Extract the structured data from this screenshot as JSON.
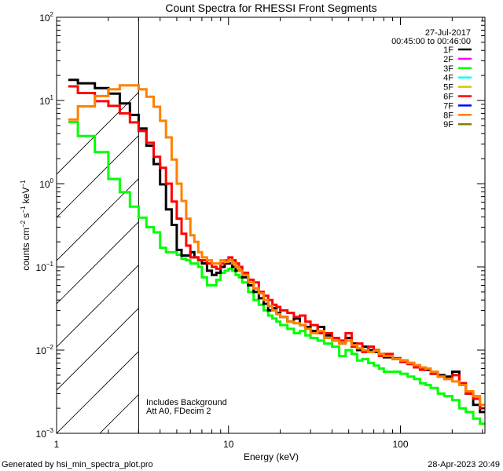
{
  "chart_data": {
    "type": "line",
    "title": "Count Spectra for RHESSI Front Segments",
    "xlabel": "Energy (keV)",
    "ylabel": "counts cm-2 s-1 keV-1",
    "ylabel_parts": {
      "base": "counts cm",
      "e1": "−2",
      "mid1": " s",
      "e2": "−1",
      "mid2": " keV",
      "e3": "−1"
    },
    "xscale": "log",
    "yscale": "log",
    "xlim": [
      1,
      310
    ],
    "ylim": [
      0.001,
      100
    ],
    "x_ticks": [
      {
        "value": 1,
        "label": "1"
      },
      {
        "value": 10,
        "label": "10"
      },
      {
        "value": 100,
        "label": "100"
      }
    ],
    "y_ticks": [
      {
        "value": 100,
        "base": "10",
        "exp": "2"
      },
      {
        "value": 10,
        "base": "10",
        "exp": "1"
      },
      {
        "value": 1,
        "base": "10",
        "exp": "0"
      },
      {
        "value": 0.1,
        "base": "10",
        "exp": "−1"
      },
      {
        "value": 0.01,
        "base": "10",
        "exp": "−2"
      },
      {
        "value": 0.001,
        "base": "10",
        "exp": "−3"
      }
    ],
    "date": "27-Jul-2017",
    "time_range": "00:45:00 to 00:46:00",
    "hatched_below_keV": 3,
    "annotations": [
      "Includes Background",
      "Att A0, FDecim 2"
    ],
    "legend_position": "top-right",
    "legend": [
      {
        "name": "1F",
        "color": "#000000"
      },
      {
        "name": "2F",
        "color": "#ff00ff"
      },
      {
        "name": "3F",
        "color": "#00ff00"
      },
      {
        "name": "4F",
        "color": "#00ffff"
      },
      {
        "name": "5F",
        "color": "#d4c800"
      },
      {
        "name": "6F",
        "color": "#ff0000"
      },
      {
        "name": "7F",
        "color": "#0000ff"
      },
      {
        "name": "8F",
        "color": "#ff8000"
      },
      {
        "name": "9F",
        "color": "#808000"
      }
    ],
    "bin_edges": [
      1.17,
      1.33,
      1.67,
      2,
      2.33,
      2.67,
      3,
      3.33,
      3.67,
      4,
      4.33,
      4.67,
      5,
      5.33,
      5.67,
      6,
      6.33,
      6.67,
      7,
      7.5,
      8,
      8.5,
      9,
      9.5,
      10,
      10.5,
      11,
      11.5,
      12,
      13,
      14,
      15,
      16,
      17,
      18,
      19,
      20,
      22,
      24,
      26,
      28,
      30,
      33,
      36,
      40,
      44,
      48,
      52,
      56,
      60,
      65,
      70,
      75,
      80,
      90,
      100,
      110,
      120,
      130,
      140,
      150,
      165,
      180,
      200,
      220,
      240,
      265,
      290,
      310
    ],
    "series": [
      {
        "name": "3F",
        "color": "#00ff00",
        "values": [
          5.5,
          3.75,
          2.4,
          1.14,
          0.79,
          0.53,
          0.39,
          0.3,
          0.26,
          0.17,
          0.15,
          0.15,
          0.14,
          0.125,
          0.12,
          0.11,
          0.11,
          0.1,
          0.075,
          0.06,
          0.06,
          0.07,
          0.085,
          0.09,
          0.095,
          0.09,
          0.08,
          0.075,
          0.065,
          0.05,
          0.04,
          0.035,
          0.03,
          0.026,
          0.024,
          0.022,
          0.02,
          0.018,
          0.016,
          0.017,
          0.015,
          0.014,
          0.013,
          0.012,
          0.011,
          0.0085,
          0.01,
          0.009,
          0.0075,
          0.0078,
          0.007,
          0.0065,
          0.006,
          0.0055,
          0.0055,
          0.0052,
          0.0048,
          0.0045,
          0.004,
          0.0038,
          0.0035,
          0.003,
          0.0028,
          0.0025,
          0.002,
          0.0018,
          0.0015,
          0.0013
        ]
      },
      {
        "name": "1F",
        "color": "#000000",
        "values": [
          17.7,
          16.1,
          14.1,
          12.1,
          9.2,
          6.7,
          4.6,
          2.86,
          1.72,
          0.98,
          0.49,
          0.32,
          0.16,
          0.137,
          0.137,
          0.15,
          0.13,
          0.12,
          0.11,
          0.09,
          0.08,
          0.085,
          0.1,
          0.11,
          0.11,
          0.1,
          0.09,
          0.1,
          0.075,
          0.06,
          0.05,
          0.042,
          0.036,
          0.03,
          0.032,
          0.028,
          0.025,
          0.022,
          0.024,
          0.02,
          0.019,
          0.017,
          0.019,
          0.015,
          0.013,
          0.012,
          0.014,
          0.012,
          0.01,
          0.011,
          0.01,
          0.0095,
          0.009,
          0.0082,
          0.0078,
          0.0075,
          0.007,
          0.0065,
          0.006,
          0.0058,
          0.0052,
          0.005,
          0.0048,
          0.0055,
          0.004,
          0.003,
          0.0022,
          0.0018
        ]
      },
      {
        "name": "6F",
        "color": "#ff0000",
        "values": [
          14.8,
          12.3,
          9.8,
          8.6,
          7.0,
          5.45,
          4.3,
          3.1,
          2.1,
          1.55,
          1.0,
          0.61,
          0.38,
          0.25,
          0.18,
          0.13,
          0.13,
          0.12,
          0.12,
          0.11,
          0.1,
          0.095,
          0.11,
          0.12,
          0.13,
          0.12,
          0.11,
          0.1,
          0.085,
          0.07,
          0.065,
          0.05,
          0.045,
          0.04,
          0.035,
          0.033,
          0.03,
          0.028,
          0.025,
          0.026,
          0.022,
          0.02,
          0.016,
          0.016,
          0.014,
          0.013,
          0.016,
          0.011,
          0.012,
          0.0095,
          0.011,
          0.01,
          0.0085,
          0.009,
          0.008,
          0.0072,
          0.0068,
          0.0062,
          0.0058,
          0.006,
          0.0052,
          0.0048,
          0.0045,
          0.005,
          0.004,
          0.003,
          0.0026,
          0.002
        ]
      },
      {
        "name": "8F",
        "color": "#ff8000",
        "values": [
          5.9,
          8.5,
          11.3,
          13.6,
          15.2,
          15.2,
          13.6,
          11.1,
          8.4,
          5.7,
          3.6,
          1.95,
          1.0,
          0.62,
          0.38,
          0.24,
          0.2,
          0.15,
          0.13,
          0.12,
          0.11,
          0.11,
          0.12,
          0.115,
          0.12,
          0.11,
          0.1,
          0.09,
          0.08,
          0.065,
          0.055,
          0.048,
          0.04,
          0.034,
          0.03,
          0.027,
          0.025,
          0.022,
          0.021,
          0.02,
          0.018,
          0.016,
          0.017,
          0.014,
          0.013,
          0.012,
          0.013,
          0.0115,
          0.0105,
          0.01,
          0.0095,
          0.0098,
          0.009,
          0.0085,
          0.0078,
          0.0075,
          0.007,
          0.0066,
          0.0062,
          0.006,
          0.0055,
          0.0048,
          0.0045,
          0.0042,
          0.0038,
          0.0032,
          0.0028,
          0.0022
        ]
      }
    ]
  },
  "footer": {
    "generated_by": "Generated by hsi_min_spectra_plot.pro",
    "timestamp": "28-Apr-2023 20:49"
  }
}
